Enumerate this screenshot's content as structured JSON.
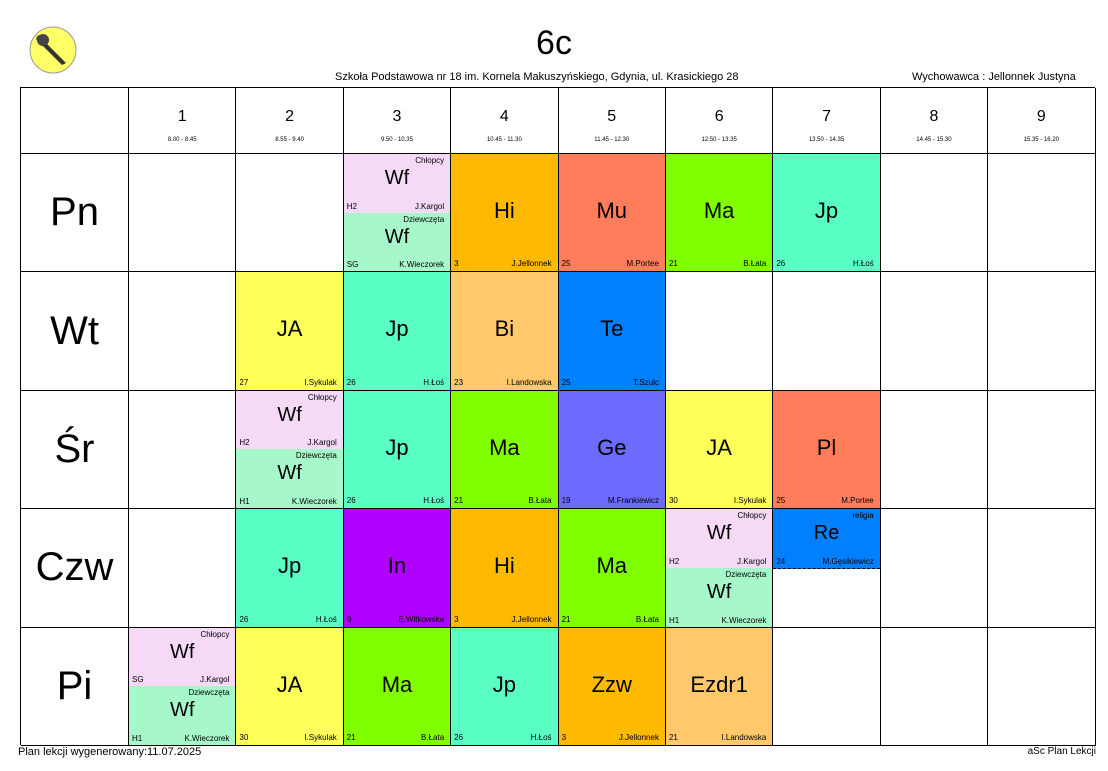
{
  "header": {
    "class_name": "6c",
    "school": "Szkoła Podstawowa nr 18 im. Kornela Makuszyńskiego, Gdynia, ul. Krasickiego 28",
    "tutor": "Wychowawca : Jellonnek Justyna"
  },
  "footer": {
    "generated": "Plan lekcji wygenerowany:11.07.2025",
    "brand": "aSc Plan Lekcji"
  },
  "periods": [
    {
      "num": "1",
      "time": "8.00 - 8.45"
    },
    {
      "num": "2",
      "time": "8.55 - 9.40"
    },
    {
      "num": "3",
      "time": "9.50 - 10.35"
    },
    {
      "num": "4",
      "time": "10.45 - 11.30"
    },
    {
      "num": "5",
      "time": "11.45 - 12.30"
    },
    {
      "num": "6",
      "time": "12.50 - 13.35"
    },
    {
      "num": "7",
      "time": "13.50 - 14.35"
    },
    {
      "num": "8",
      "time": "14.45 - 15.30"
    },
    {
      "num": "9",
      "time": "15.35 - 16.20"
    }
  ],
  "days": [
    "Pn",
    "Wt",
    "Śr",
    "Czw",
    "Pi"
  ],
  "colors": {
    "wf_boys": "#f5d9f7",
    "wf_girls": "#a6f7c9",
    "Hi": "#ffb900",
    "Mu": "#ff7d5a",
    "Ma": "#80ff00",
    "Jp": "#5affc3",
    "JA": "#ffff5a",
    "Bi": "#ffc96b",
    "Te": "#0080ff",
    "Ge": "#6b6bff",
    "Pl": "#ff7d5a",
    "In": "#b000ff",
    "Re": "#0080ff",
    "Zzw": "#ffb900",
    "Ezdr1": "#ffc96b"
  },
  "schedule": {
    "Pn": {
      "3": {
        "split": true,
        "top": {
          "group": "Chłopcy",
          "subject": "Wf",
          "room": "H2",
          "teacher": "J.Kargol"
        },
        "bottom": {
          "group": "Dziewczęta",
          "subject": "Wf",
          "room": "SG",
          "teacher": "K.Wieczorek"
        }
      },
      "4": {
        "subject": "Hi",
        "room": "3",
        "teacher": "J.Jellonnek"
      },
      "5": {
        "subject": "Mu",
        "room": "25",
        "teacher": "M.Portee"
      },
      "6": {
        "subject": "Ma",
        "room": "21",
        "teacher": "B.Łata"
      },
      "7": {
        "subject": "Jp",
        "room": "26",
        "teacher": "H.Łoś"
      }
    },
    "Wt": {
      "2": {
        "subject": "JA",
        "room": "27",
        "teacher": "I.Sykulak"
      },
      "3": {
        "subject": "Jp",
        "room": "26",
        "teacher": "H.Łoś"
      },
      "4": {
        "subject": "Bi",
        "room": "23",
        "teacher": "I.Landowska"
      },
      "5": {
        "subject": "Te",
        "room": "25",
        "teacher": "T.Szulc"
      }
    },
    "Śr": {
      "2": {
        "split": true,
        "top": {
          "group": "Chłopcy",
          "subject": "Wf",
          "room": "H2",
          "teacher": "J.Kargol"
        },
        "bottom": {
          "group": "Dziewczęta",
          "subject": "Wf",
          "room": "H1",
          "teacher": "K.Wieczorek"
        }
      },
      "3": {
        "subject": "Jp",
        "room": "26",
        "teacher": "H.Łoś"
      },
      "4": {
        "subject": "Ma",
        "room": "21",
        "teacher": "B.Łata"
      },
      "5": {
        "subject": "Ge",
        "room": "19",
        "teacher": "M.Frankiewicz"
      },
      "6": {
        "subject": "JA",
        "room": "30",
        "teacher": "I.Sykulak"
      },
      "7": {
        "subject": "Pl",
        "room": "25",
        "teacher": "M.Portee"
      }
    },
    "Czw": {
      "2": {
        "subject": "Jp",
        "room": "26",
        "teacher": "H.Łoś"
      },
      "3": {
        "subject": "In",
        "room": "9",
        "teacher": "E.Witkowska"
      },
      "4": {
        "subject": "Hi",
        "room": "3",
        "teacher": "J.Jellonnek"
      },
      "5": {
        "subject": "Ma",
        "room": "21",
        "teacher": "B.Łata"
      },
      "6": {
        "split": true,
        "top": {
          "group": "Chłopcy",
          "subject": "Wf",
          "room": "H2",
          "teacher": "J.Kargol"
        },
        "bottom": {
          "group": "Dziewczęta",
          "subject": "Wf",
          "room": "H1",
          "teacher": "K.Wieczorek"
        }
      },
      "7": {
        "split": true,
        "top": {
          "group": "religia",
          "subject": "Re",
          "room": "24",
          "teacher": "M.Gęsikiewicz"
        },
        "bottom": null
      }
    },
    "Pi": {
      "1": {
        "split": true,
        "top": {
          "group": "Chłopcy",
          "subject": "Wf",
          "room": "SG",
          "teacher": "J.Kargol"
        },
        "bottom": {
          "group": "Dziewczęta",
          "subject": "Wf",
          "room": "H1",
          "teacher": "K.Wieczorek"
        }
      },
      "2": {
        "subject": "JA",
        "room": "30",
        "teacher": "I.Sykulak"
      },
      "3": {
        "subject": "Ma",
        "room": "21",
        "teacher": "B.Łata"
      },
      "4": {
        "subject": "Jp",
        "room": "26",
        "teacher": "H.Łoś"
      },
      "5": {
        "subject": "Zzw",
        "room": "3",
        "teacher": "J.Jellonnek"
      },
      "6": {
        "subject": "Ezdr1",
        "room": "21",
        "teacher": "I.Landowska"
      }
    }
  }
}
